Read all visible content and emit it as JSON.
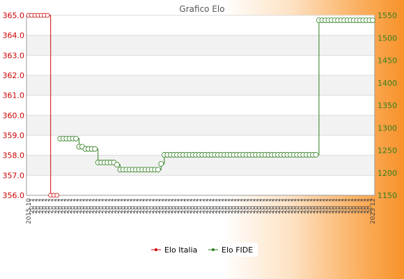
{
  "chart_data": {
    "type": "line",
    "title": "Grafico Elo",
    "x_tick_labels_visible": {
      "first": "2015 10",
      "last": "2023 12"
    },
    "num_points": 110,
    "y_left": {
      "min": 356.0,
      "max": 365.0,
      "ticks": [
        356.0,
        357.0,
        358.0,
        359.0,
        360.0,
        361.0,
        362.0,
        363.0,
        364.0,
        365.0
      ],
      "color": "#cc0000"
    },
    "y_right": {
      "min": 1150,
      "max": 1550,
      "ticks": [
        1150,
        1200,
        1250,
        1300,
        1350,
        1400,
        1450,
        1500,
        1550
      ],
      "color": "#2e7d1e"
    },
    "series": [
      {
        "name": "Elo Italia",
        "axis": "left",
        "color": "#cc0000",
        "points": [
          [
            0,
            365.0
          ],
          [
            1,
            365.0
          ],
          [
            2,
            365.0
          ],
          [
            3,
            365.0
          ],
          [
            4,
            365.0
          ],
          [
            5,
            365.0
          ],
          [
            6,
            365.0
          ],
          [
            7,
            356.0
          ],
          [
            8,
            356.0
          ],
          [
            9,
            356.0
          ]
        ]
      },
      {
        "name": "Elo FIDE",
        "axis": "right",
        "color": "#2e7d1e",
        "points": [
          [
            10,
            1276
          ],
          [
            11,
            1276
          ],
          [
            12,
            1276
          ],
          [
            13,
            1276
          ],
          [
            14,
            1276
          ],
          [
            15,
            1276
          ],
          [
            16,
            1258
          ],
          [
            17,
            1258
          ],
          [
            18,
            1253
          ],
          [
            19,
            1253
          ],
          [
            20,
            1253
          ],
          [
            21,
            1253
          ],
          [
            22,
            1223
          ],
          [
            23,
            1223
          ],
          [
            24,
            1223
          ],
          [
            25,
            1223
          ],
          [
            26,
            1223
          ],
          [
            27,
            1223
          ],
          [
            28,
            1218
          ],
          [
            29,
            1207
          ],
          [
            30,
            1207
          ],
          [
            31,
            1207
          ],
          [
            32,
            1207
          ],
          [
            33,
            1207
          ],
          [
            34,
            1207
          ],
          [
            35,
            1207
          ],
          [
            36,
            1207
          ],
          [
            37,
            1207
          ],
          [
            38,
            1207
          ],
          [
            39,
            1207
          ],
          [
            40,
            1207
          ],
          [
            41,
            1207
          ],
          [
            42,
            1220
          ],
          [
            43,
            1240
          ],
          [
            44,
            1240
          ],
          [
            45,
            1240
          ],
          [
            46,
            1240
          ],
          [
            47,
            1240
          ],
          [
            48,
            1240
          ],
          [
            49,
            1240
          ],
          [
            50,
            1240
          ],
          [
            51,
            1240
          ],
          [
            52,
            1240
          ],
          [
            53,
            1240
          ],
          [
            54,
            1240
          ],
          [
            55,
            1240
          ],
          [
            56,
            1240
          ],
          [
            57,
            1240
          ],
          [
            58,
            1240
          ],
          [
            59,
            1240
          ],
          [
            60,
            1240
          ],
          [
            61,
            1240
          ],
          [
            62,
            1240
          ],
          [
            63,
            1240
          ],
          [
            64,
            1240
          ],
          [
            65,
            1240
          ],
          [
            66,
            1240
          ],
          [
            67,
            1240
          ],
          [
            68,
            1240
          ],
          [
            69,
            1240
          ],
          [
            70,
            1240
          ],
          [
            71,
            1240
          ],
          [
            72,
            1240
          ],
          [
            73,
            1240
          ],
          [
            74,
            1240
          ],
          [
            75,
            1240
          ],
          [
            76,
            1240
          ],
          [
            77,
            1240
          ],
          [
            78,
            1240
          ],
          [
            79,
            1240
          ],
          [
            80,
            1240
          ],
          [
            81,
            1240
          ],
          [
            82,
            1240
          ],
          [
            83,
            1240
          ],
          [
            84,
            1240
          ],
          [
            85,
            1240
          ],
          [
            86,
            1240
          ],
          [
            87,
            1240
          ],
          [
            88,
            1240
          ],
          [
            89,
            1240
          ],
          [
            90,
            1240
          ],
          [
            91,
            1240
          ],
          [
            92,
            1539
          ],
          [
            93,
            1539
          ],
          [
            94,
            1539
          ],
          [
            95,
            1539
          ],
          [
            96,
            1539
          ],
          [
            97,
            1539
          ],
          [
            98,
            1539
          ],
          [
            99,
            1539
          ],
          [
            100,
            1539
          ],
          [
            101,
            1539
          ],
          [
            102,
            1539
          ],
          [
            103,
            1539
          ],
          [
            104,
            1539
          ],
          [
            105,
            1539
          ],
          [
            106,
            1539
          ],
          [
            107,
            1539
          ],
          [
            108,
            1539
          ],
          [
            109,
            1539
          ]
        ]
      }
    ],
    "legend": {
      "placement": "bottom",
      "entries": [
        "Elo Italia",
        "Elo FIDE"
      ]
    },
    "grid": "horizontal-bands"
  }
}
